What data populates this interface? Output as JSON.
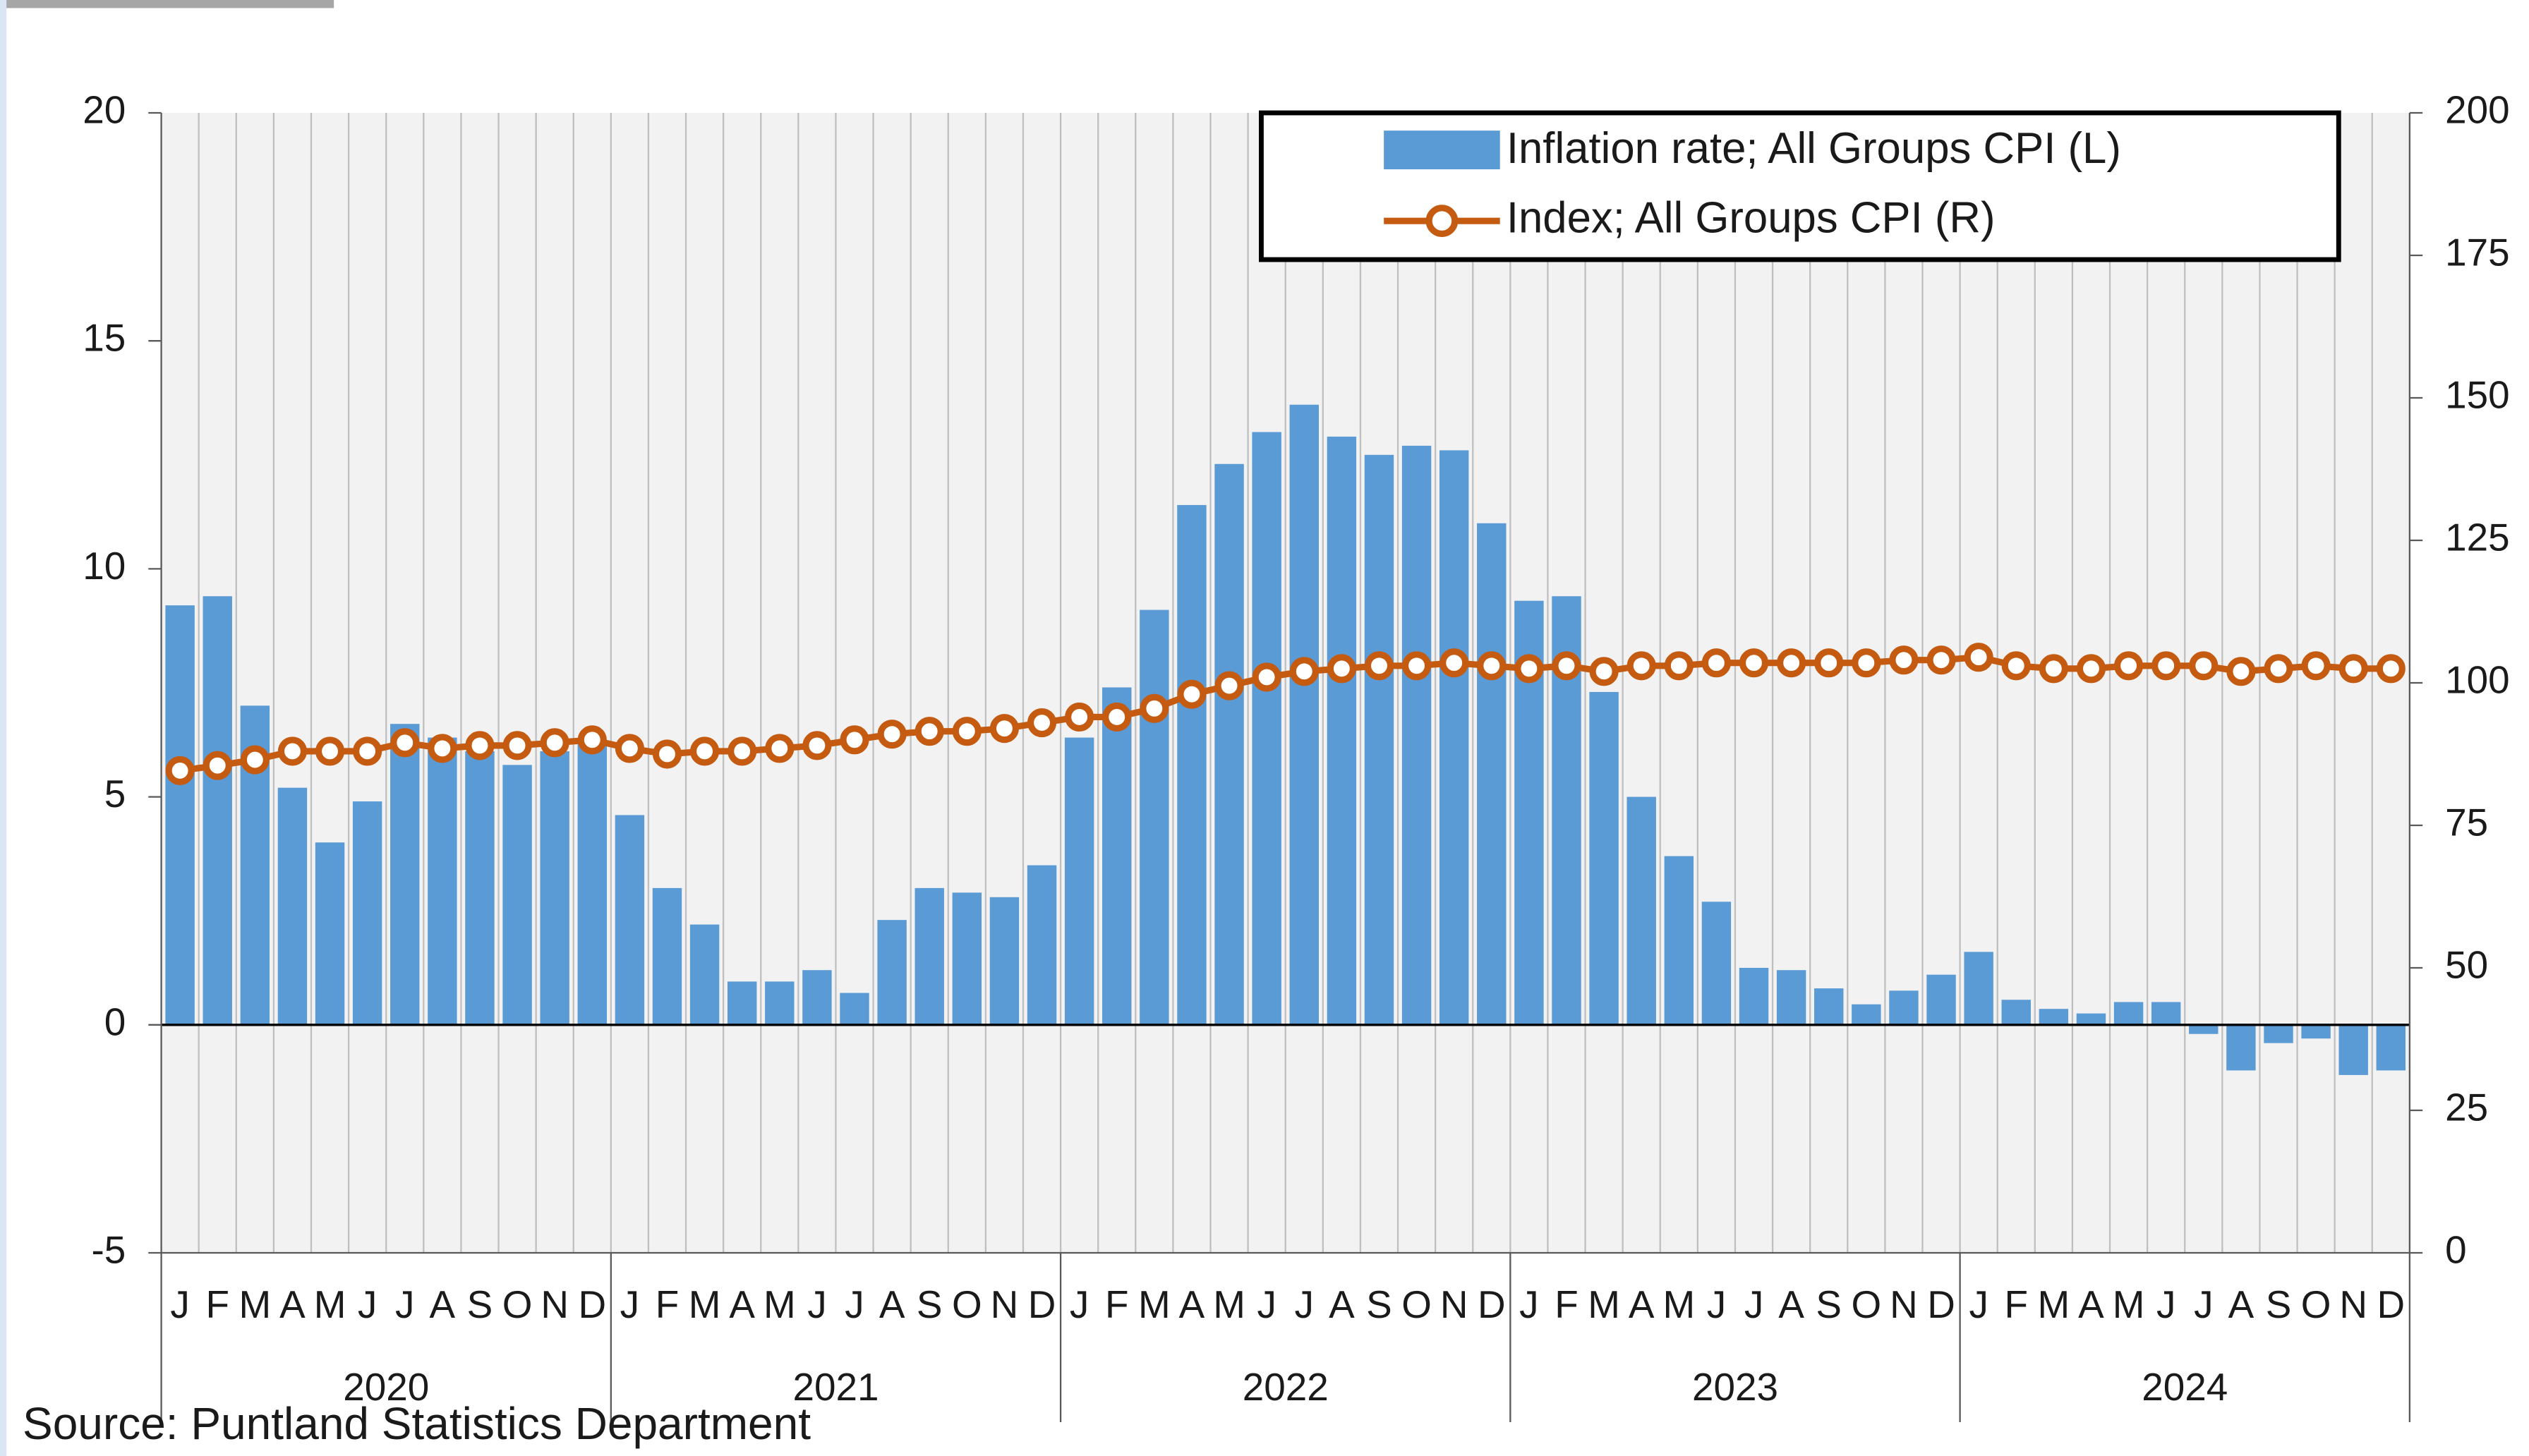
{
  "chart_data": {
    "type": "bar_line",
    "categories": [
      "J",
      "F",
      "M",
      "A",
      "M",
      "J",
      "J",
      "A",
      "S",
      "O",
      "N",
      "D",
      "J",
      "F",
      "M",
      "A",
      "M",
      "J",
      "J",
      "A",
      "S",
      "O",
      "N",
      "D",
      "J",
      "F",
      "M",
      "A",
      "M",
      "J",
      "J",
      "A",
      "S",
      "O",
      "N",
      "D",
      "J",
      "F",
      "M",
      "A",
      "M",
      "J",
      "J",
      "A",
      "S",
      "O",
      "N",
      "D",
      "J",
      "F",
      "M",
      "A",
      "M",
      "J",
      "J",
      "A",
      "S",
      "O",
      "N",
      "D"
    ],
    "year_labels": [
      "2020",
      "2021",
      "2022",
      "2023",
      "2024"
    ],
    "series": [
      {
        "name": "Inflation rate; All Groups CPI (L)",
        "type": "bar",
        "color": "#5b9bd5",
        "values": [
          9.2,
          9.4,
          7.0,
          5.2,
          4.0,
          4.9,
          6.6,
          6.3,
          6.0,
          5.7,
          6.0,
          6.2,
          4.6,
          3.0,
          2.2,
          0.95,
          0.95,
          1.2,
          0.7,
          2.3,
          3.0,
          2.9,
          2.8,
          3.5,
          6.3,
          7.4,
          9.1,
          11.4,
          12.3,
          13.0,
          13.6,
          12.9,
          12.5,
          12.7,
          12.6,
          11.0,
          9.3,
          9.4,
          7.3,
          5.0,
          3.7,
          2.7,
          1.25,
          1.2,
          0.8,
          0.45,
          0.75,
          1.1,
          1.6,
          0.55,
          0.35,
          0.25,
          0.5,
          0.5,
          -0.2,
          -1.0,
          -0.4,
          -0.3,
          -1.1,
          -1.0
        ]
      },
      {
        "name": "Index; All Groups CPI (R)",
        "type": "line",
        "axis": "y2",
        "color": "#c55a11",
        "values": [
          84.6,
          85.5,
          86.5,
          88,
          88,
          88,
          89.5,
          88.5,
          89,
          89,
          89.5,
          90,
          88.5,
          87.5,
          88,
          88,
          88.5,
          89,
          90,
          91,
          91.5,
          91.5,
          92,
          93,
          94,
          94,
          95.5,
          98,
          99.5,
          101,
          102,
          102.5,
          103,
          103,
          103.5,
          103,
          102.5,
          103,
          102,
          103,
          103,
          103.5,
          103.5,
          103.5,
          103.5,
          103.5,
          104,
          104,
          104.5,
          103,
          102.5,
          102.5,
          103,
          103,
          103,
          102,
          102.5,
          103,
          102.5,
          102.5
        ]
      }
    ],
    "ylim": [
      -5,
      20
    ],
    "yticks": [
      -5,
      0,
      5,
      10,
      15,
      20
    ],
    "y2lim": [
      0,
      200
    ],
    "y2ticks": [
      0,
      25,
      50,
      75,
      100,
      125,
      150,
      175,
      200
    ],
    "grid": true,
    "legend": "top-right",
    "source": "Source: Puntland Statistics Department"
  }
}
